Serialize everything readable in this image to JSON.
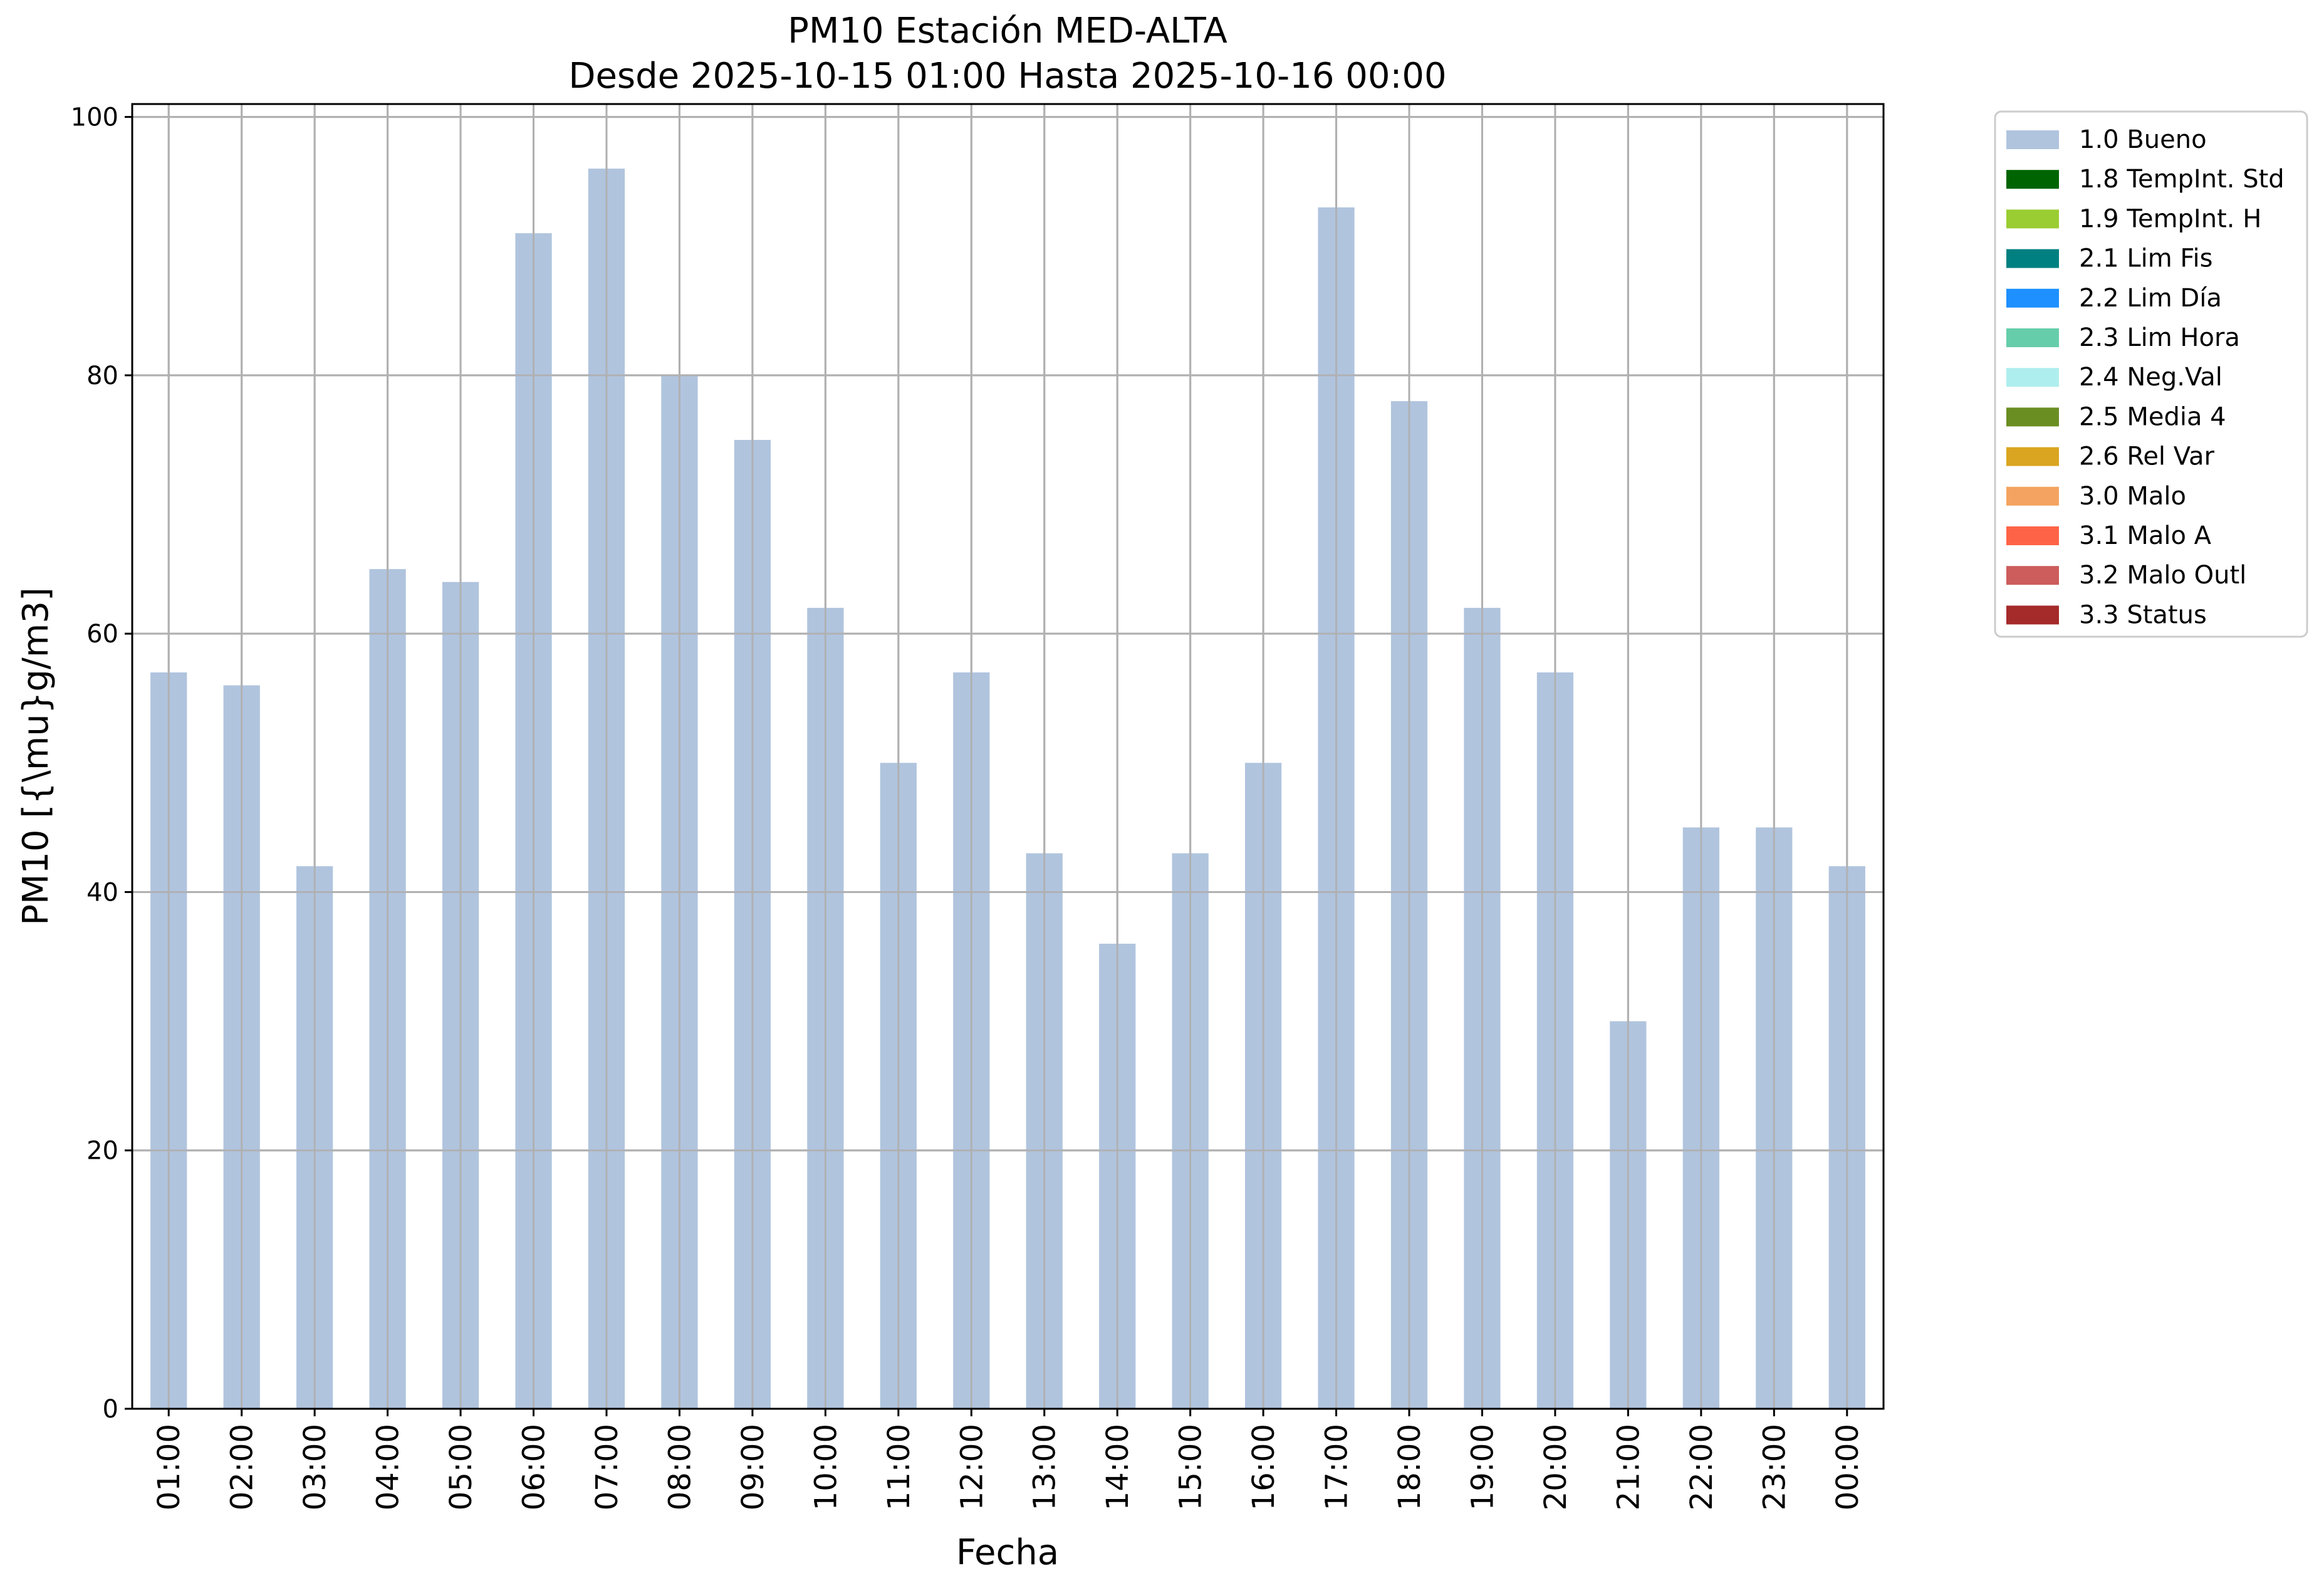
{
  "chart_data": {
    "type": "bar",
    "title": "PM10 Estación MED-ALTA",
    "subtitle": "Desde 2025-10-15 01:00 Hasta 2025-10-16 00:00",
    "xlabel": "Fecha",
    "ylabel": "PM10 [{\\mu}g/m3]",
    "ylim": [
      0,
      101
    ],
    "yticks": [
      0,
      20,
      40,
      60,
      80,
      100
    ],
    "grid": true,
    "legend_position": "outside-top-right",
    "categories": [
      "01:00",
      "02:00",
      "03:00",
      "04:00",
      "05:00",
      "06:00",
      "07:00",
      "08:00",
      "09:00",
      "10:00",
      "11:00",
      "12:00",
      "13:00",
      "14:00",
      "15:00",
      "16:00",
      "17:00",
      "18:00",
      "19:00",
      "20:00",
      "21:00",
      "22:00",
      "23:00",
      "00:00"
    ],
    "series": [
      {
        "name": "1.0 Bueno",
        "color": "#b0c4de",
        "values": [
          57,
          56,
          42,
          65,
          64,
          91,
          96,
          80,
          75,
          62,
          50,
          57,
          43,
          36,
          43,
          50,
          93,
          78,
          62,
          57,
          30,
          45,
          45,
          42
        ]
      }
    ],
    "legend": [
      {
        "label": "1.0 Bueno",
        "color": "#b0c4de"
      },
      {
        "label": "1.8 TempInt. Std",
        "color": "#006400"
      },
      {
        "label": "1.9 TempInt. H",
        "color": "#9acd32"
      },
      {
        "label": "2.1 Lim Fis",
        "color": "#008080"
      },
      {
        "label": "2.2 Lim Día",
        "color": "#1e90ff"
      },
      {
        "label": "2.3 Lim Hora",
        "color": "#66cdaa"
      },
      {
        "label": "2.4 Neg.Val",
        "color": "#afeeee"
      },
      {
        "label": "2.5 Media 4",
        "color": "#6b8e23"
      },
      {
        "label": "2.6 Rel Var",
        "color": "#daa520"
      },
      {
        "label": "3.0 Malo",
        "color": "#f4a460"
      },
      {
        "label": "3.1 Malo A",
        "color": "#ff6347"
      },
      {
        "label": "3.2 Malo Outl",
        "color": "#cd5c5c"
      },
      {
        "label": "3.3 Status",
        "color": "#a52a2a"
      }
    ]
  }
}
